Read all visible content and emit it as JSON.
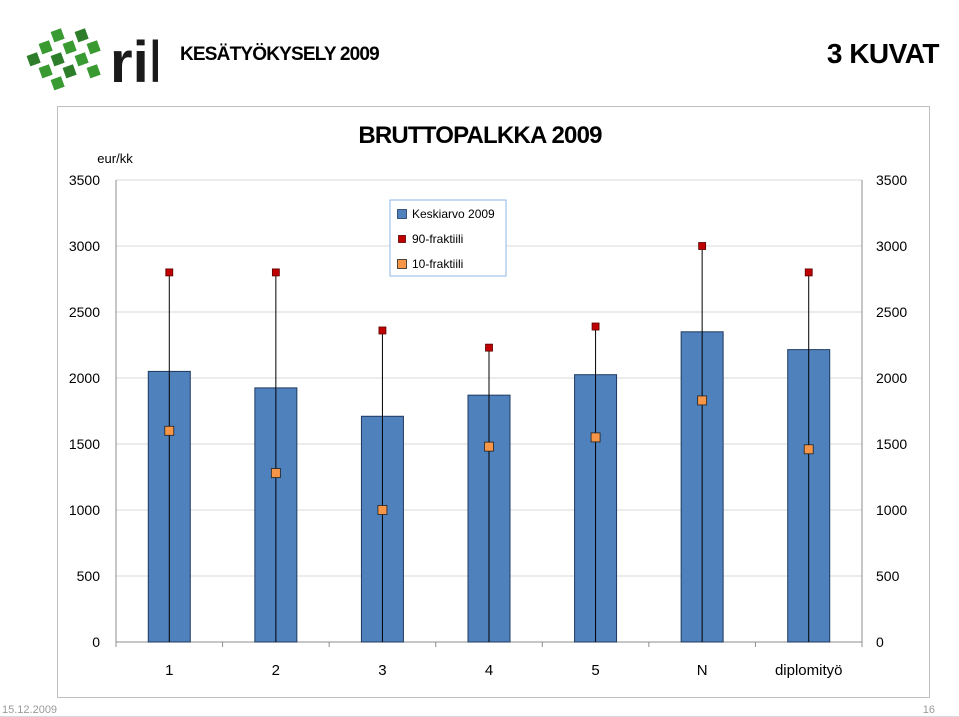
{
  "header": {
    "logo_text": "ril",
    "survey_title": "KESÄTYÖKYSELY 2009",
    "section_title": "3 KUVAT"
  },
  "colors": {
    "bar": "#4f81bd",
    "bar_border": "#1f3a5f",
    "p90_marker": "#c00000",
    "p10_marker": "#f79646",
    "logo_green": "#3a9a32"
  },
  "chart_data": {
    "type": "bar",
    "title": "BRUTTOPALKKA 2009",
    "ylabel": "eur/kk",
    "categories": [
      "1",
      "2",
      "3",
      "4",
      "5",
      "N",
      "diplomityö"
    ],
    "ylim": [
      0,
      3500
    ],
    "yticks": [
      0,
      500,
      1000,
      1500,
      2000,
      2500,
      3000,
      3500
    ],
    "secondary_axis": true,
    "grid": true,
    "legend_position": "top-center",
    "series": [
      {
        "name": "Keskiarvo 2009",
        "kind": "bar",
        "values": [
          2050,
          1925,
          1710,
          1870,
          2025,
          2350,
          2215
        ]
      },
      {
        "name": "90-fraktiili",
        "kind": "marker",
        "values": [
          2800,
          2800,
          2360,
          2230,
          2390,
          3000,
          2800
        ]
      },
      {
        "name": "10-fraktiili",
        "kind": "marker",
        "values": [
          1600,
          1280,
          1000,
          1480,
          1550,
          1830,
          1460
        ]
      }
    ]
  },
  "footer": {
    "date": "15.12.2009",
    "page": "16"
  }
}
